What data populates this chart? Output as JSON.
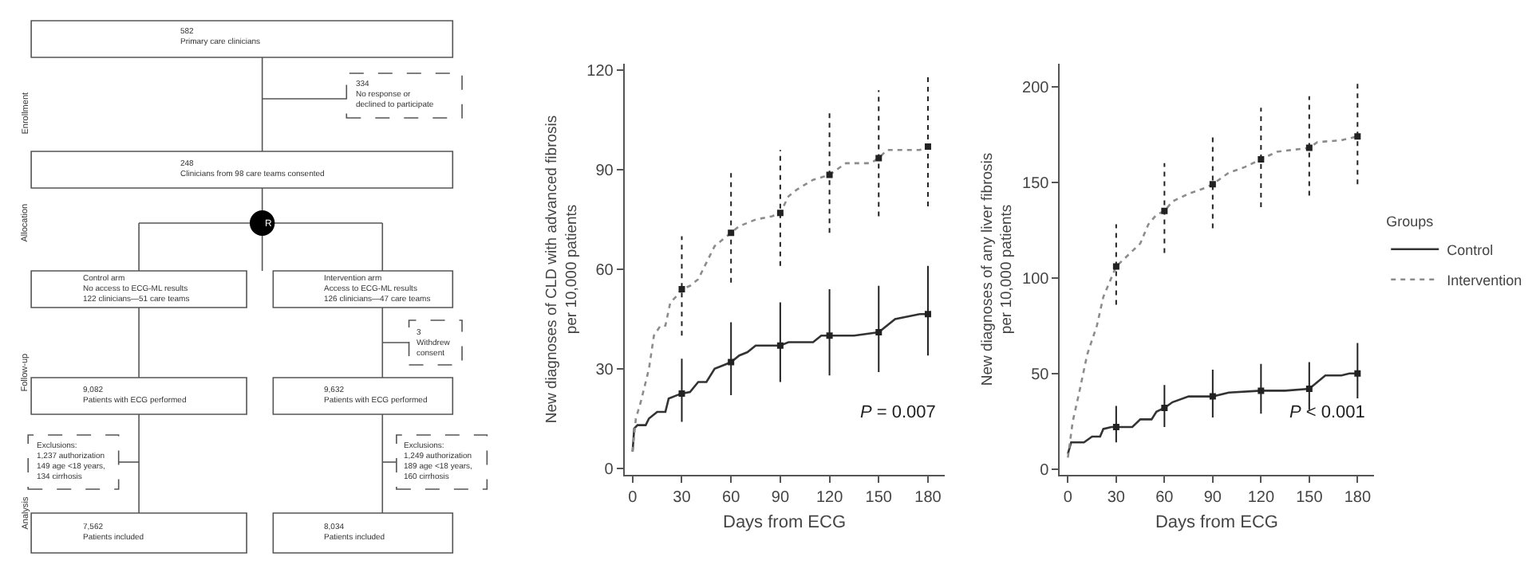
{
  "chart_data": [
    {
      "type": "other",
      "annotations": [
        "582\nPrimary care clinicians",
        "334\nNo response or\ndeclined to participate",
        "248\nClinicians from 98 care teams consented",
        "R",
        "Control arm\nNo access to ECG-ML results\n122 clinicians—51 care teams",
        "Intervention arm\nAccess to ECG-ML results\n126 clinicians—47 care teams",
        "3\nWithdrew\nconsent",
        "9,082\nPatients with ECG performed",
        "9,632\nPatients with ECG performed",
        "Exclusions:\n1,237 authorization\n149 age <18 years,\n134 cirrhosis",
        "Exclusions:\n1,249 authorization\n189 age <18 years,\n160 cirrhosis",
        "7,562\nPatients included",
        "8,034\nPatients included",
        "Enrollment",
        "Allocation",
        "Follow-up",
        "Analysis"
      ]
    },
    {
      "type": "line",
      "xlabel": "Days from ECG",
      "ylabel": "New diagnoses of CLD with advanced fibrosis\nper 10,000 patients",
      "xlim": [
        -5,
        190
      ],
      "ylim": [
        -2,
        122
      ],
      "xticks": [
        0,
        30,
        60,
        90,
        120,
        150,
        180
      ],
      "yticks": [
        0,
        30,
        60,
        90,
        120
      ],
      "legend": false,
      "annotations": [
        "P = 0.007"
      ],
      "series": [
        {
          "type": "line",
          "color": "#333333",
          "line_style": "solid",
          "x": [
            0,
            1,
            3,
            8,
            10,
            15,
            20,
            22,
            27,
            30,
            35,
            40,
            45,
            50,
            55,
            60,
            65,
            70,
            75,
            90,
            95,
            110,
            115,
            120,
            135,
            150,
            160,
            175,
            180
          ],
          "values": [
            5,
            12,
            13,
            13,
            15,
            17,
            17,
            21,
            22,
            22.5,
            23,
            26,
            26,
            30,
            31,
            32,
            34,
            35,
            37,
            37,
            38,
            38,
            40,
            40,
            40,
            41,
            45,
            46.5,
            46.5
          ]
        },
        {
          "type": "line",
          "color": "#8c8c8c",
          "line_style": "dotted",
          "x": [
            0,
            2,
            5,
            10,
            13,
            17,
            20,
            23,
            27,
            30,
            35,
            40,
            45,
            50,
            55,
            60,
            65,
            75,
            85,
            90,
            95,
            100,
            110,
            120,
            130,
            145,
            150,
            155,
            175,
            180
          ],
          "values": [
            5,
            15,
            20,
            30,
            40,
            43,
            43,
            50,
            52,
            54,
            55,
            57,
            62,
            67,
            69,
            71,
            73,
            75,
            76,
            77,
            82,
            84,
            87,
            88.5,
            92,
            92,
            93.5,
            96,
            96,
            97
          ]
        },
        {
          "type": "scatter",
          "color": "#222222",
          "marker": "square",
          "line_style": "solid",
          "x": [
            30,
            60,
            90,
            120,
            150,
            180
          ],
          "values": [
            22.5,
            32,
            37,
            40,
            41,
            46.5
          ],
          "errors": [
            [
              14,
              33
            ],
            [
              22,
              44
            ],
            [
              26,
              50
            ],
            [
              28,
              54
            ],
            [
              29,
              55
            ],
            [
              34,
              61
            ]
          ]
        },
        {
          "type": "scatter",
          "color": "#222222",
          "marker": "square",
          "line_style": "dotted",
          "x": [
            30,
            60,
            90,
            120,
            150,
            180
          ],
          "values": [
            54,
            71,
            77,
            88.5,
            93.5,
            97
          ],
          "errors": [
            [
              40,
              70
            ],
            [
              56,
              89
            ],
            [
              61,
              96
            ],
            [
              71,
              108
            ],
            [
              76,
              114
            ],
            [
              79,
              118
            ]
          ]
        }
      ]
    },
    {
      "type": "line",
      "xlabel": "Days from ECG",
      "ylabel": "New diagnoses of any liver fibrosis\nper 10,000 patients",
      "xlim": [
        -5,
        190
      ],
      "ylim": [
        -3,
        212
      ],
      "xticks": [
        0,
        30,
        60,
        90,
        120,
        150,
        180
      ],
      "yticks": [
        0,
        50,
        100,
        150,
        200
      ],
      "legend": "right",
      "legend_title": "Groups",
      "annotations": [
        "P < 0.001"
      ],
      "series": [
        {
          "name": "Control",
          "type": "line",
          "color": "#333333",
          "line_style": "solid",
          "x": [
            0,
            2,
            10,
            15,
            20,
            22,
            27,
            30,
            40,
            45,
            52,
            55,
            60,
            65,
            75,
            90,
            100,
            120,
            135,
            150,
            160,
            170,
            175,
            180
          ],
          "values": [
            8,
            14,
            14,
            17,
            17,
            21,
            22,
            22,
            22,
            26,
            26,
            30,
            32,
            35,
            38,
            38,
            40,
            41,
            41,
            42,
            49,
            49,
            50,
            50
          ]
        },
        {
          "name": "Intervention",
          "type": "line",
          "color": "#8c8c8c",
          "line_style": "dotted",
          "x": [
            0,
            3,
            7,
            12,
            18,
            22,
            27,
            30,
            35,
            45,
            50,
            55,
            60,
            65,
            75,
            85,
            90,
            100,
            110,
            120,
            130,
            140,
            150,
            155,
            170,
            180
          ],
          "values": [
            6,
            25,
            40,
            60,
            75,
            90,
            100,
            106,
            110,
            118,
            128,
            133,
            135,
            140,
            144,
            147,
            149,
            155,
            158,
            162,
            166,
            167,
            168,
            171,
            172,
            174
          ]
        },
        {
          "type": "scatter",
          "color": "#222222",
          "marker": "square",
          "line_style": "solid",
          "x": [
            30,
            60,
            90,
            120,
            150,
            180
          ],
          "values": [
            22,
            32,
            38,
            41,
            42,
            50
          ],
          "errors": [
            [
              14,
              33
            ],
            [
              22,
              44
            ],
            [
              27,
              52
            ],
            [
              29,
              55
            ],
            [
              31,
              56
            ],
            [
              37,
              66
            ]
          ]
        },
        {
          "type": "scatter",
          "color": "#222222",
          "marker": "square",
          "line_style": "dotted",
          "x": [
            30,
            60,
            90,
            120,
            150,
            180
          ],
          "values": [
            106,
            135,
            149,
            162,
            168,
            174
          ],
          "errors": [
            [
              86,
              128
            ],
            [
              113,
              160
            ],
            [
              126,
              175
            ],
            [
              137,
              189
            ],
            [
              143,
              195
            ],
            [
              149,
              202
            ]
          ]
        }
      ]
    }
  ]
}
